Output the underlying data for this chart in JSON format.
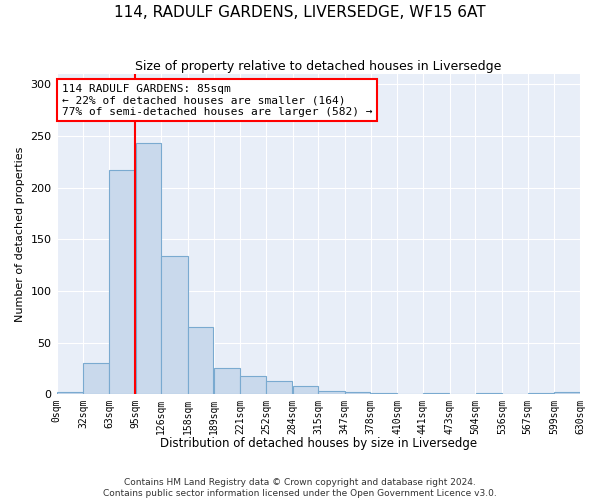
{
  "title": "114, RADULF GARDENS, LIVERSEDGE, WF15 6AT",
  "subtitle": "Size of property relative to detached houses in Liversedge",
  "xlabel": "Distribution of detached houses by size in Liversedge",
  "ylabel": "Number of detached properties",
  "bar_color": "#c9d9ec",
  "bar_edge_color": "#7aaad0",
  "bin_edges": [
    0,
    32,
    63,
    95,
    126,
    158,
    189,
    221,
    252,
    284,
    315,
    347,
    378,
    410,
    441,
    473,
    504,
    536,
    567,
    599,
    630
  ],
  "bin_labels": [
    "0sqm",
    "32sqm",
    "63sqm",
    "95sqm",
    "126sqm",
    "158sqm",
    "189sqm",
    "221sqm",
    "252sqm",
    "284sqm",
    "315sqm",
    "347sqm",
    "378sqm",
    "410sqm",
    "441sqm",
    "473sqm",
    "504sqm",
    "536sqm",
    "567sqm",
    "599sqm",
    "630sqm"
  ],
  "counts": [
    2,
    30,
    217,
    243,
    134,
    65,
    25,
    18,
    13,
    8,
    3,
    2,
    1,
    0,
    1,
    0,
    1,
    0,
    1,
    2
  ],
  "property_size": 85,
  "vline_x": 95,
  "annotation_text": "114 RADULF GARDENS: 85sqm\n← 22% of detached houses are smaller (164)\n77% of semi-detached houses are larger (582) →",
  "annotation_box_color": "white",
  "annotation_box_edge_color": "red",
  "vline_color": "red",
  "ylim": [
    0,
    310
  ],
  "yticks": [
    0,
    50,
    100,
    150,
    200,
    250,
    300
  ],
  "background_color": "#e8eef8",
  "footer_line1": "Contains HM Land Registry data © Crown copyright and database right 2024.",
  "footer_line2": "Contains public sector information licensed under the Open Government Licence v3.0."
}
